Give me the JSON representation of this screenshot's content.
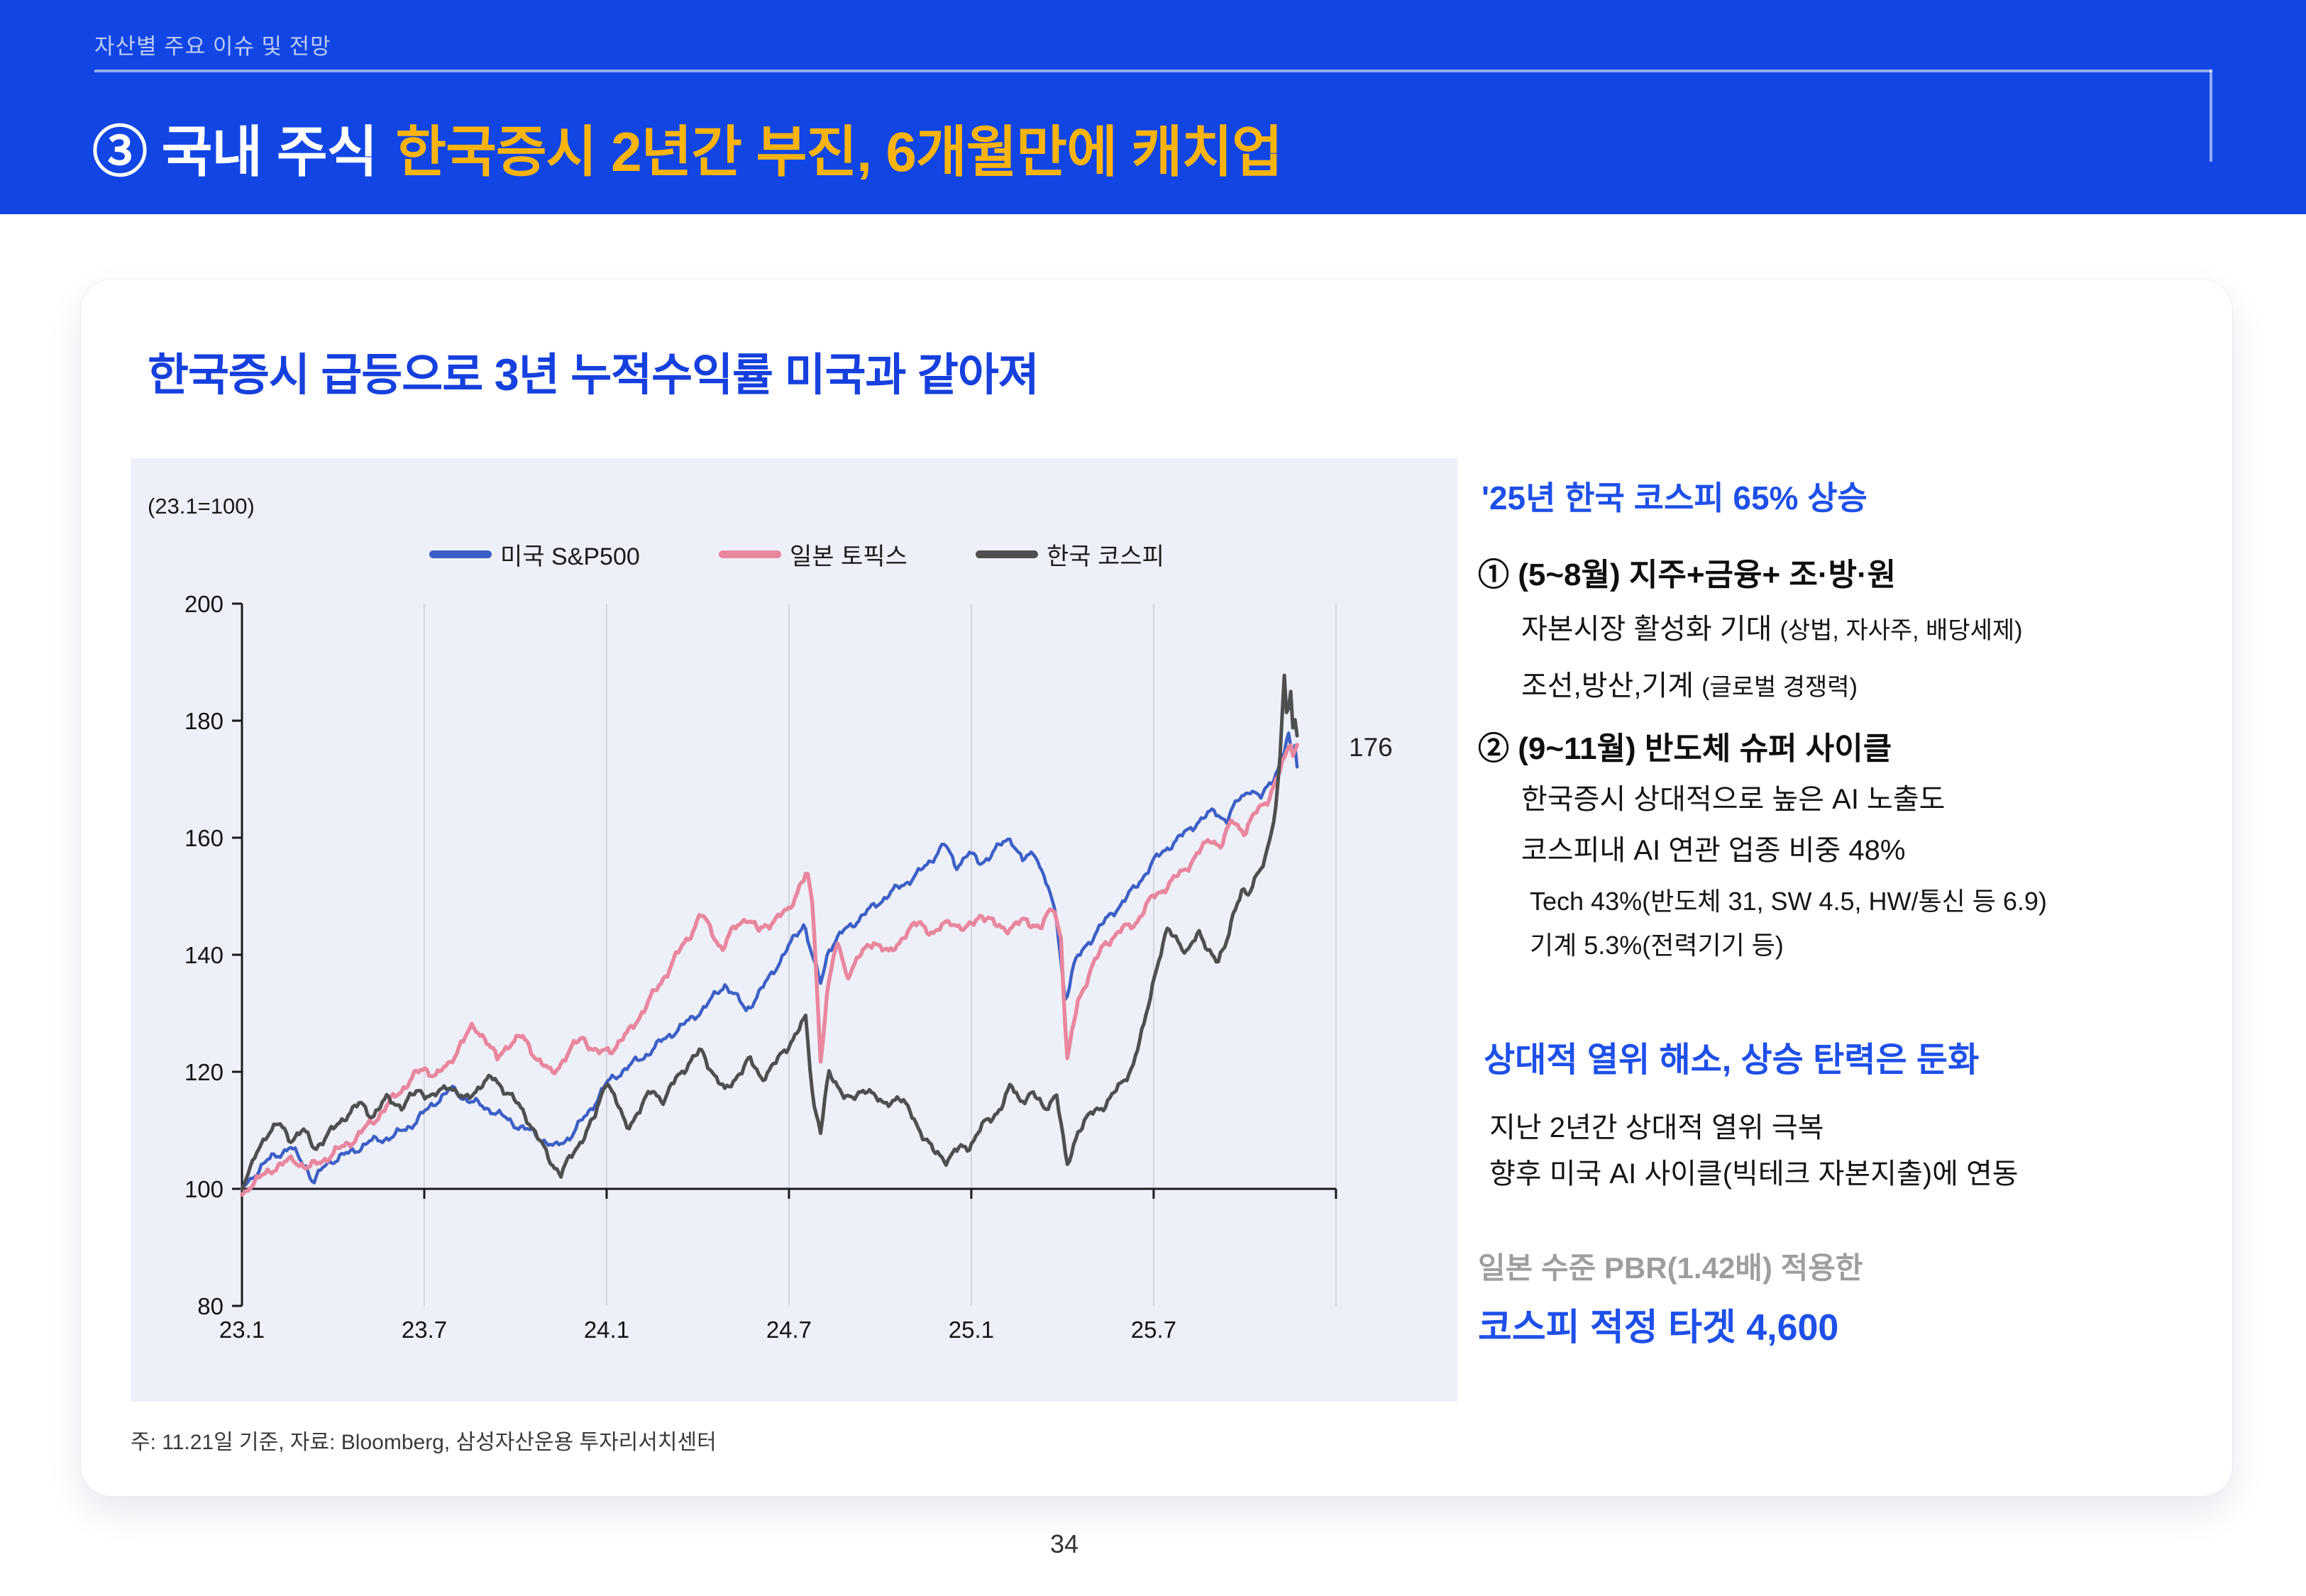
{
  "colors": {
    "header_bg": "#1146e4",
    "header_accent": "#fbb40e",
    "eyebrow_text": "#bccbf6",
    "header_rule": "rgba(255,255,255,0.55)",
    "accent_blue": "#1640dd",
    "right_heading_blue": "#1e50e8",
    "gray_text": "#9e9e9e",
    "panel_bg": "#eef0f9",
    "gridline": "#d3d5de",
    "axis": "#1a1a1a"
  },
  "slide": {
    "eyebrow": "자산별 주요 이슈 및 전망",
    "title_prefix": "③ 국내 주식",
    "title_highlight": "한국증시 2년간 부진, 6개월만에 캐치업",
    "page_number": "34"
  },
  "card": {
    "heading": "한국증시 급등으로 3년 누적수익률 미국과 같아져",
    "footnote": "주: 11.21일 기준, 자료: Bloomberg, 삼성자산운용 투자리서치센터"
  },
  "right_panel": {
    "h1": "'25년 한국 코스피 65% 상승",
    "b1": "① (5~8월) 지주+금융+ 조·방·원",
    "l1a_main": "자본시장 활성화 기대 ",
    "l1a_small": "(상법, 자사주, 배당세제)",
    "l1b_main": "조선,방산,기계 ",
    "l1b_small": "(글로벌 경쟁력)",
    "b2": "② (9~11월) 반도체 슈퍼 사이클",
    "l2a": "한국증시 상대적으로 높은 AI 노출도",
    "l2b": "코스피내 AI 연관 업종 비중 48%",
    "s2a": "Tech 43%(반도체 31, SW 4.5, HW/통신 등 6.9)",
    "s2b": "기계 5.3%(전력기기 등)",
    "h2": "상대적 열위 해소, 상승 탄력은 둔화",
    "l3a": "지난 2년간 상대적 열위 극복",
    "l3b": "향후 미국 AI 사이클(빅테크 자본지출)에 연동",
    "g1": "일본 수준 PBR(1.42배) 적용한",
    "h3": "코스피 적정 타겟 4,600"
  },
  "chart_data": {
    "type": "line",
    "subtitle": "(23.1=100)",
    "x_tick_labels": [
      "23.1",
      "23.7",
      "24.1",
      "24.7",
      "25.1",
      "25.7"
    ],
    "x_tick_months": [
      0,
      6,
      12,
      18,
      24,
      30
    ],
    "gridline_months": [
      6,
      12,
      18,
      24,
      30,
      36
    ],
    "x_axis_note": "months since 2023-01, data through 2025-11-21",
    "m_end": 34.75,
    "ylim": [
      80,
      200
    ],
    "y_ticks": [
      80,
      100,
      120,
      140,
      160,
      180,
      200
    ],
    "baseline_value": 100,
    "end_label": "176",
    "legend_position": "top",
    "grid": "vertical-only",
    "series": [
      {
        "name": "미국 S&P500",
        "color": "#3c5fc6",
        "width": 4.5,
        "seed": 1,
        "noise_amp": 0.9,
        "points": [
          [
            0,
            100
          ],
          [
            0.5,
            103
          ],
          [
            1,
            105.5
          ],
          [
            1.6,
            107
          ],
          [
            2.1,
            104
          ],
          [
            2.35,
            101
          ],
          [
            2.8,
            104.5
          ],
          [
            3.5,
            106
          ],
          [
            4.2,
            108
          ],
          [
            5,
            109
          ],
          [
            5.6,
            111
          ],
          [
            6,
            113
          ],
          [
            6.5,
            115.5
          ],
          [
            6.9,
            117
          ],
          [
            7.5,
            115
          ],
          [
            8.2,
            113.5
          ],
          [
            9,
            111
          ],
          [
            9.6,
            109.5
          ],
          [
            10.3,
            107
          ],
          [
            10.8,
            109
          ],
          [
            11.4,
            113
          ],
          [
            12,
            118
          ],
          [
            12.6,
            120.5
          ],
          [
            13.2,
            122.5
          ],
          [
            14,
            126
          ],
          [
            14.8,
            129
          ],
          [
            15.4,
            132
          ],
          [
            15.9,
            135
          ],
          [
            16.3,
            132.5
          ],
          [
            16.6,
            130.5
          ],
          [
            17.1,
            134
          ],
          [
            17.7,
            139
          ],
          [
            18.2,
            143
          ],
          [
            18.5,
            145.5
          ],
          [
            18.8,
            139
          ],
          [
            19.05,
            135
          ],
          [
            19.3,
            141
          ],
          [
            19.8,
            144
          ],
          [
            20.5,
            147
          ],
          [
            21.2,
            150
          ],
          [
            21.9,
            152.5
          ],
          [
            22.5,
            155
          ],
          [
            23.1,
            159
          ],
          [
            23.5,
            155
          ],
          [
            23.9,
            157.5
          ],
          [
            24.3,
            155.5
          ],
          [
            24.8,
            158
          ],
          [
            25.3,
            160
          ],
          [
            25.7,
            156
          ],
          [
            26.1,
            157.5
          ],
          [
            26.5,
            152
          ],
          [
            26.8,
            146
          ],
          [
            27.1,
            132
          ],
          [
            27.35,
            138
          ],
          [
            27.7,
            141
          ],
          [
            28.2,
            144.5
          ],
          [
            28.8,
            148
          ],
          [
            29.4,
            151.5
          ],
          [
            30,
            156
          ],
          [
            30.6,
            159
          ],
          [
            31.1,
            161
          ],
          [
            31.5,
            163
          ],
          [
            32,
            164.5
          ],
          [
            32.4,
            163
          ],
          [
            32.8,
            166.5
          ],
          [
            33.2,
            168.5
          ],
          [
            33.5,
            166.5
          ],
          [
            33.9,
            170
          ],
          [
            34.2,
            173
          ],
          [
            34.45,
            177.5
          ],
          [
            34.55,
            173.5
          ],
          [
            34.65,
            176
          ],
          [
            34.75,
            170.5
          ]
        ]
      },
      {
        "name": "일본 토픽스",
        "color": "#e8879e",
        "width": 5.5,
        "seed": 2,
        "noise_amp": 1.0,
        "points": [
          [
            0,
            99
          ],
          [
            0.4,
            101
          ],
          [
            1,
            103.5
          ],
          [
            1.7,
            105
          ],
          [
            2.2,
            103.5
          ],
          [
            3,
            106
          ],
          [
            3.7,
            108.5
          ],
          [
            4.4,
            112
          ],
          [
            5,
            115.5
          ],
          [
            5.6,
            119
          ],
          [
            6,
            120.5
          ],
          [
            6.4,
            119.5
          ],
          [
            6.8,
            121
          ],
          [
            7.2,
            125
          ],
          [
            7.6,
            127.5
          ],
          [
            8,
            126
          ],
          [
            8.4,
            122
          ],
          [
            8.8,
            125
          ],
          [
            9.2,
            126
          ],
          [
            9.7,
            122.5
          ],
          [
            10.2,
            119.5
          ],
          [
            10.7,
            123
          ],
          [
            11.2,
            126
          ],
          [
            11.7,
            123
          ],
          [
            12.2,
            124
          ],
          [
            12.7,
            126.5
          ],
          [
            13.2,
            130.5
          ],
          [
            13.7,
            134.5
          ],
          [
            14.2,
            139
          ],
          [
            14.7,
            143
          ],
          [
            15.1,
            147
          ],
          [
            15.45,
            144
          ],
          [
            15.8,
            141
          ],
          [
            16.2,
            144.5
          ],
          [
            16.6,
            146.5
          ],
          [
            17,
            144
          ],
          [
            17.5,
            146
          ],
          [
            18,
            147.5
          ],
          [
            18.35,
            152
          ],
          [
            18.6,
            154
          ],
          [
            18.8,
            147
          ],
          [
            19.05,
            121
          ],
          [
            19.25,
            134
          ],
          [
            19.6,
            142
          ],
          [
            19.9,
            136.5
          ],
          [
            20.3,
            139.5
          ],
          [
            20.8,
            142.5
          ],
          [
            21.3,
            140
          ],
          [
            21.8,
            143.5
          ],
          [
            22.3,
            145.5
          ],
          [
            22.8,
            143.5
          ],
          [
            23.3,
            146
          ],
          [
            23.8,
            144
          ],
          [
            24.3,
            147
          ],
          [
            24.8,
            145
          ],
          [
            25.3,
            144.5
          ],
          [
            25.8,
            146
          ],
          [
            26.3,
            144.5
          ],
          [
            26.7,
            148.5
          ],
          [
            26.95,
            143
          ],
          [
            27.15,
            121.5
          ],
          [
            27.5,
            132
          ],
          [
            27.9,
            137
          ],
          [
            28.4,
            142
          ],
          [
            28.9,
            144
          ],
          [
            29.4,
            145.5
          ],
          [
            30,
            150
          ],
          [
            30.5,
            152
          ],
          [
            31,
            154.5
          ],
          [
            31.5,
            157.5
          ],
          [
            31.9,
            160
          ],
          [
            32.2,
            158.5
          ],
          [
            32.6,
            163
          ],
          [
            33,
            161
          ],
          [
            33.4,
            164.5
          ],
          [
            33.8,
            167
          ],
          [
            34.1,
            170.5
          ],
          [
            34.35,
            174
          ],
          [
            34.5,
            177
          ],
          [
            34.6,
            173.5
          ],
          [
            34.7,
            176.5
          ],
          [
            34.75,
            175
          ]
        ]
      },
      {
        "name": "한국 코스피",
        "color": "#4f4f4f",
        "width": 5,
        "seed": 3,
        "noise_amp": 1.0,
        "points": [
          [
            0,
            100
          ],
          [
            0.4,
            105
          ],
          [
            0.8,
            109.5
          ],
          [
            1.2,
            111
          ],
          [
            1.6,
            108.5
          ],
          [
            2,
            110
          ],
          [
            2.4,
            107
          ],
          [
            2.9,
            109.5
          ],
          [
            3.4,
            112.5
          ],
          [
            3.9,
            114.5
          ],
          [
            4.3,
            112.5
          ],
          [
            4.8,
            115.5
          ],
          [
            5.3,
            114
          ],
          [
            5.8,
            117
          ],
          [
            6.3,
            115.5
          ],
          [
            6.8,
            118
          ],
          [
            7.3,
            115
          ],
          [
            7.8,
            117.5
          ],
          [
            8.3,
            119
          ],
          [
            8.8,
            116
          ],
          [
            9.3,
            113
          ],
          [
            9.8,
            108
          ],
          [
            10.2,
            104.5
          ],
          [
            10.5,
            102.5
          ],
          [
            11,
            107
          ],
          [
            11.6,
            112
          ],
          [
            12,
            119
          ],
          [
            12.3,
            115
          ],
          [
            12.65,
            110.5
          ],
          [
            13.1,
            113.5
          ],
          [
            13.5,
            117
          ],
          [
            13.9,
            115
          ],
          [
            14.3,
            119
          ],
          [
            14.7,
            121.5
          ],
          [
            15.1,
            123.5
          ],
          [
            15.5,
            120
          ],
          [
            15.9,
            116.5
          ],
          [
            16.3,
            119.5
          ],
          [
            16.7,
            122
          ],
          [
            17.1,
            119
          ],
          [
            17.5,
            121
          ],
          [
            17.9,
            124
          ],
          [
            18.3,
            127
          ],
          [
            18.55,
            129
          ],
          [
            18.8,
            115
          ],
          [
            19.05,
            110
          ],
          [
            19.3,
            119.5
          ],
          [
            19.7,
            117
          ],
          [
            20.1,
            115
          ],
          [
            20.6,
            117.5
          ],
          [
            21.1,
            114
          ],
          [
            21.6,
            116
          ],
          [
            22.1,
            112
          ],
          [
            22.5,
            108.5
          ],
          [
            22.8,
            106
          ],
          [
            23.2,
            105
          ],
          [
            23.45,
            106.5
          ],
          [
            23.9,
            107
          ],
          [
            24.3,
            110.5
          ],
          [
            24.7,
            112
          ],
          [
            25,
            114.5
          ],
          [
            25.3,
            117.5
          ],
          [
            25.6,
            115
          ],
          [
            26,
            116.5
          ],
          [
            26.4,
            113.5
          ],
          [
            26.8,
            116.5
          ],
          [
            27.15,
            103.5
          ],
          [
            27.5,
            110
          ],
          [
            27.9,
            112.5
          ],
          [
            28.4,
            114.5
          ],
          [
            28.9,
            117.5
          ],
          [
            29.3,
            121
          ],
          [
            29.7,
            128
          ],
          [
            30,
            136
          ],
          [
            30.2,
            140
          ],
          [
            30.45,
            144
          ],
          [
            30.8,
            142.5
          ],
          [
            31.1,
            140.5
          ],
          [
            31.5,
            143.5
          ],
          [
            31.9,
            140.5
          ],
          [
            32.1,
            138.5
          ],
          [
            32.35,
            141
          ],
          [
            32.6,
            147
          ],
          [
            32.9,
            151
          ],
          [
            33.1,
            149.5
          ],
          [
            33.4,
            154
          ],
          [
            33.7,
            157
          ],
          [
            33.9,
            161
          ],
          [
            34.05,
            166
          ],
          [
            34.15,
            173
          ],
          [
            34.3,
            188.5
          ],
          [
            34.4,
            179.5
          ],
          [
            34.5,
            186
          ],
          [
            34.6,
            177
          ],
          [
            34.68,
            182
          ],
          [
            34.75,
            174
          ]
        ]
      }
    ]
  }
}
